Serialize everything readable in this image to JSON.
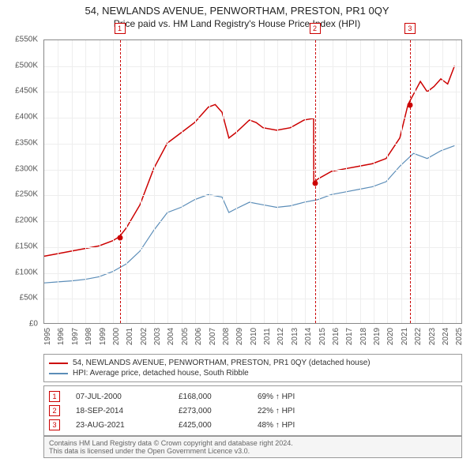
{
  "title": "54, NEWLANDS AVENUE, PENWORTHAM, PRESTON, PR1 0QY",
  "subtitle": "Price paid vs. HM Land Registry's House Price Index (HPI)",
  "chart": {
    "type": "line",
    "background_color": "#ffffff",
    "grid_color": "#eeeeee",
    "border_color": "#888888",
    "x_years": [
      1995,
      1996,
      1997,
      1998,
      1999,
      2000,
      2001,
      2002,
      2003,
      2004,
      2005,
      2006,
      2007,
      2008,
      2009,
      2010,
      2011,
      2012,
      2013,
      2014,
      2015,
      2016,
      2017,
      2018,
      2019,
      2020,
      2021,
      2022,
      2023,
      2024,
      2025
    ],
    "xlim": [
      1995,
      2025.5
    ],
    "ylim": [
      0,
      550
    ],
    "y_ticks": [
      0,
      50,
      100,
      150,
      200,
      250,
      300,
      350,
      400,
      450,
      500,
      550
    ],
    "y_tick_prefix": "£",
    "y_tick_suffix": "K",
    "label_fontsize": 10,
    "series": [
      {
        "name": "property",
        "label": "54, NEWLANDS AVENUE, PENWORTHAM, PRESTON, PR1 0QY (detached house)",
        "color": "#cc0000",
        "line_width": 1.5,
        "points": [
          [
            1995,
            130
          ],
          [
            1996,
            135
          ],
          [
            1997,
            140
          ],
          [
            1998,
            145
          ],
          [
            1999,
            150
          ],
          [
            2000,
            160
          ],
          [
            2000.5,
            168
          ],
          [
            2001,
            185
          ],
          [
            2002,
            230
          ],
          [
            2003,
            300
          ],
          [
            2004,
            350
          ],
          [
            2005,
            370
          ],
          [
            2006,
            390
          ],
          [
            2007,
            420
          ],
          [
            2007.5,
            425
          ],
          [
            2008,
            410
          ],
          [
            2008.5,
            360
          ],
          [
            2009,
            370
          ],
          [
            2010,
            395
          ],
          [
            2010.5,
            390
          ],
          [
            2011,
            380
          ],
          [
            2012,
            375
          ],
          [
            2013,
            380
          ],
          [
            2014,
            395
          ],
          [
            2014.7,
            398
          ],
          [
            2014.71,
            273
          ],
          [
            2015,
            280
          ],
          [
            2016,
            295
          ],
          [
            2017,
            300
          ],
          [
            2018,
            305
          ],
          [
            2019,
            310
          ],
          [
            2020,
            320
          ],
          [
            2021,
            360
          ],
          [
            2021.6,
            425
          ],
          [
            2022,
            445
          ],
          [
            2022.5,
            470
          ],
          [
            2023,
            450
          ],
          [
            2023.5,
            460
          ],
          [
            2024,
            475
          ],
          [
            2024.5,
            465
          ],
          [
            2025,
            500
          ]
        ]
      },
      {
        "name": "hpi",
        "label": "HPI: Average price, detached house, South Ribble",
        "color": "#5b8db8",
        "line_width": 1.2,
        "points": [
          [
            1995,
            78
          ],
          [
            1996,
            80
          ],
          [
            1997,
            82
          ],
          [
            1998,
            85
          ],
          [
            1999,
            90
          ],
          [
            2000,
            100
          ],
          [
            2001,
            115
          ],
          [
            2002,
            140
          ],
          [
            2003,
            180
          ],
          [
            2004,
            215
          ],
          [
            2005,
            225
          ],
          [
            2006,
            240
          ],
          [
            2007,
            250
          ],
          [
            2008,
            245
          ],
          [
            2008.5,
            215
          ],
          [
            2009,
            222
          ],
          [
            2010,
            235
          ],
          [
            2011,
            230
          ],
          [
            2012,
            225
          ],
          [
            2013,
            228
          ],
          [
            2014,
            235
          ],
          [
            2015,
            240
          ],
          [
            2016,
            250
          ],
          [
            2017,
            255
          ],
          [
            2018,
            260
          ],
          [
            2019,
            265
          ],
          [
            2020,
            275
          ],
          [
            2021,
            305
          ],
          [
            2022,
            330
          ],
          [
            2023,
            320
          ],
          [
            2024,
            335
          ],
          [
            2025,
            345
          ]
        ]
      }
    ],
    "events": [
      {
        "num": "1",
        "year": 2000.5,
        "price_k": 168,
        "date": "07-JUL-2000",
        "price": "£168,000",
        "hpi_pct": "69% ↑ HPI"
      },
      {
        "num": "2",
        "year": 2014.71,
        "price_k": 273,
        "date": "18-SEP-2014",
        "price": "£273,000",
        "hpi_pct": "22% ↑ HPI"
      },
      {
        "num": "3",
        "year": 2021.64,
        "price_k": 425,
        "date": "23-AUG-2021",
        "price": "£425,000",
        "hpi_pct": "48% ↑ HPI"
      }
    ],
    "event_line_color": "#cc0000",
    "event_dot_color": "#cc0000"
  },
  "footer": {
    "line1": "Contains HM Land Registry data © Crown copyright and database right 2024.",
    "line2": "This data is licensed under the Open Government Licence v3.0."
  }
}
